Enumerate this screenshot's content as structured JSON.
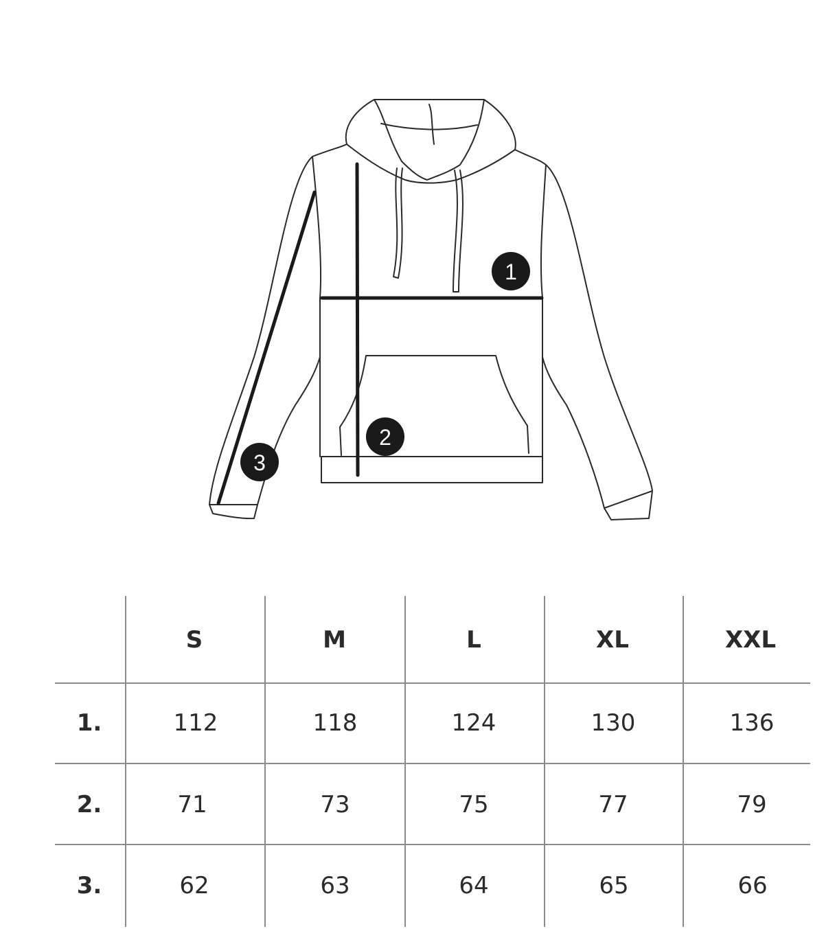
{
  "diagram": {
    "markers": [
      "1",
      "2",
      "3"
    ],
    "line_color": "#1a1a1a"
  },
  "size_table": {
    "columns": [
      "S",
      "M",
      "L",
      "XL",
      "XXL"
    ],
    "rows": [
      {
        "label": "1.",
        "values": [
          "112",
          "118",
          "124",
          "130",
          "136"
        ]
      },
      {
        "label": "2.",
        "values": [
          "71",
          "73",
          "75",
          "77",
          "79"
        ]
      },
      {
        "label": "3.",
        "values": [
          "62",
          "63",
          "64",
          "65",
          "66"
        ]
      }
    ]
  }
}
